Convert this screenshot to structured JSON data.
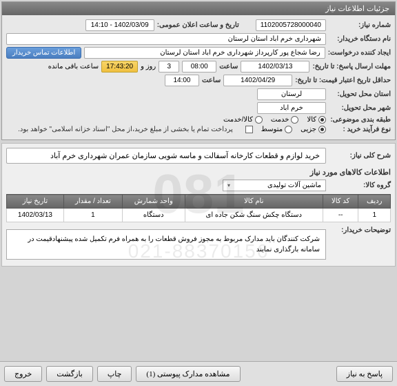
{
  "panel_title": "جزئیات اطلاعات نیاز",
  "fields": {
    "need_no_label": "شماره نیاز:",
    "need_no": "1102005728000040",
    "announce_label": "تاریخ و ساعت اعلان عمومی:",
    "announce": "1402/03/09 - 14:10",
    "buyer_org_label": "نام دستگاه خریدار:",
    "buyer_org": "شهرداری خرم اباد استان لرستان",
    "requester_label": "ایجاد کننده درخواست:",
    "requester": "رضا شجاع پور کارپرداز شهرداری خرم اباد استان لرستان",
    "contact_btn": "اطلاعات تماس خریدار",
    "deadline_label": "مهلت ارسال پاسخ: تا تاریخ:",
    "deadline_date": "1402/03/13",
    "time_label": "ساعت",
    "deadline_time": "08:00",
    "days_and": "روز و",
    "days": "3",
    "remaining_time": "17:43:20",
    "remaining_label": "ساعت باقی مانده",
    "validity_label": "حداقل تاریخ اعتبار قیمت: تا تاریخ:",
    "validity_date": "1402/04/29",
    "validity_time": "14:00",
    "province_label": "استان محل تحویل:",
    "province": "لرستان",
    "city_label": "شهر محل تحویل:",
    "city": "خرم اباد",
    "category_label": "طبقه بندی موضوعی:",
    "cat_goods": "کالا",
    "cat_service": "خدمت",
    "cat_both": "کالا/خدمت",
    "process_label": "نوع فرآیند خرید :",
    "proc_partial": "جزیی",
    "proc_medium": "متوسط",
    "payment_note": "پرداخت تمام یا بخشی از مبلغ خرید،از محل \"اسناد خزانه اسلامی\" خواهد بود.",
    "summary_label": "شرح کلی نیاز:",
    "summary": "خرید لوازم و قطعات کارخانه آسفالت و ماسه شویی سازمان عمران شهرداری خرم آباد",
    "items_title": "اطلاعات کالاهای مورد نیاز",
    "group_label": "گروه کالا:",
    "group": "ماشین آلات تولیدی",
    "buyer_desc_label": "توضیحات خریدار:",
    "buyer_desc": "شرکت کنندگان باید مدارک مربوط به مجوز فروش قطعات را به همراه فرم تکمیل شده پیشنهادقیمت در سامانه بارگذاری نمایند"
  },
  "table": {
    "columns": [
      "ردیف",
      "کد کالا",
      "نام کالا",
      "واحد شمارش",
      "تعداد / مقدار",
      "تاریخ نیاز"
    ],
    "rows": [
      [
        "1",
        "--",
        "دستگاه چکش سنگ شکن جاده ای",
        "دستگاه",
        "1",
        "1402/03/13"
      ]
    ]
  },
  "footer": {
    "answer": "پاسخ به نیاز",
    "attachments": "مشاهده مدارک پیوستی (1)",
    "print": "چاپ",
    "back": "بازگشت",
    "exit": "خروج"
  },
  "watermark_num": "081",
  "watermark_phone": "021-88370156"
}
